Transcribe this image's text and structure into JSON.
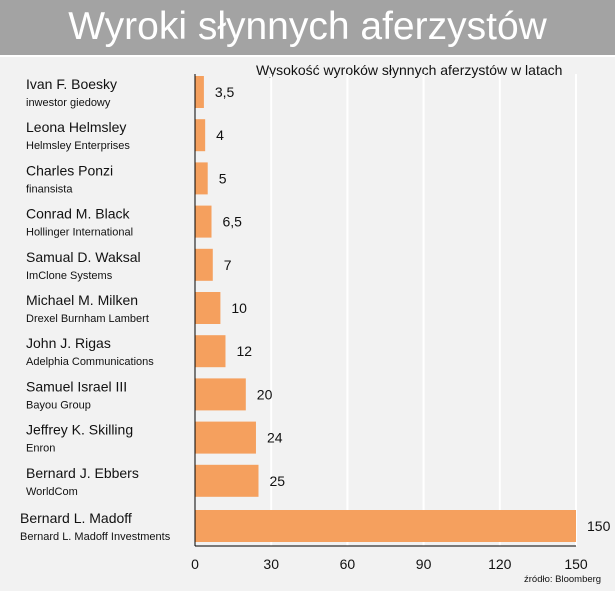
{
  "header": {
    "title": "Wyroki słynnych aferzystów"
  },
  "subtitle": "Wysokość wyroków słynnych aferzystów w latach",
  "source": "źródło: Bloomberg",
  "colors": {
    "bar": "#f5a05e",
    "background": "#f2f2f2",
    "title_bar": "#a3a3a3",
    "grid": "#ffffff"
  },
  "chart_data": {
    "type": "bar",
    "orientation": "horizontal",
    "title": "Wysokość wyroków słynnych aferzystów w latach",
    "categories": [
      {
        "name": "Ivan F. Boesky",
        "detail": "inwestor giedowy"
      },
      {
        "name": "Leona Helmsley",
        "detail": "Helmsley Enterprises"
      },
      {
        "name": "Charles Ponzi",
        "detail": "finansista"
      },
      {
        "name": "Conrad M. Black",
        "detail": "Hollinger International"
      },
      {
        "name": "Samual D. Waksal",
        "detail": "ImClone Systems"
      },
      {
        "name": "Michael M. Milken",
        "detail": "Drexel Burnham Lambert"
      },
      {
        "name": "John J. Rigas",
        "detail": "Adelphia Communications"
      },
      {
        "name": "Samuel Israel III",
        "detail": "Bayou Group"
      },
      {
        "name": "Jeffrey K. Skilling",
        "detail": "Enron"
      },
      {
        "name": "Bernard J. Ebbers",
        "detail": "WorldCom"
      },
      {
        "name": "Bernard L. Madoff",
        "detail": "Bernard L. Madoff Investments"
      }
    ],
    "values": [
      3.5,
      4,
      5,
      6.5,
      7,
      10,
      12,
      20,
      24,
      25,
      150
    ],
    "value_labels": [
      "3,5",
      "4",
      "5",
      "6,5",
      "7",
      "10",
      "12",
      "20",
      "24",
      "25",
      "150"
    ],
    "xlim": [
      0,
      150
    ],
    "xticks": [
      0,
      30,
      60,
      90,
      120,
      150
    ],
    "grid": true,
    "legend": "none"
  }
}
